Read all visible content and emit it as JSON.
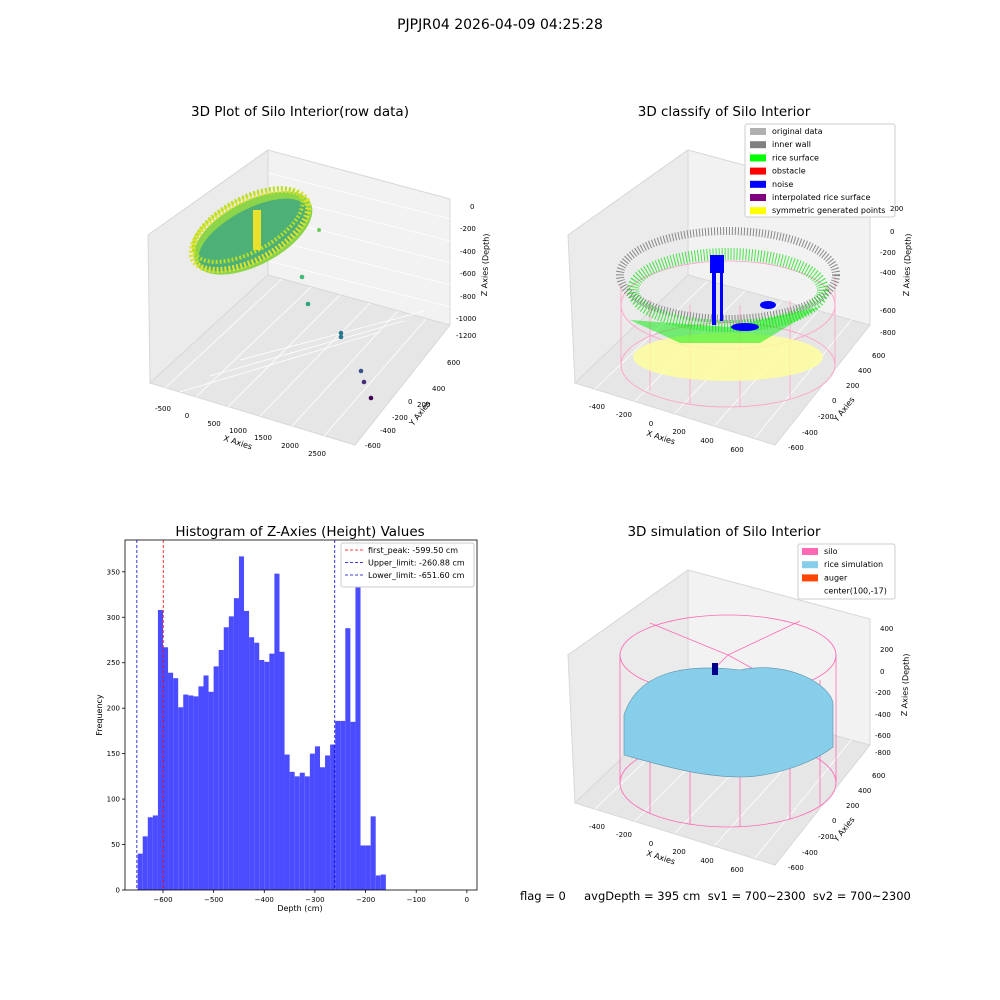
{
  "figure": {
    "title": "PJPJR04 2026-04-09 04:25:28",
    "footer": "flag = 0     avgDepth = 395 cm  sv1 = 700~2300  sv2 = 700~2300"
  },
  "panel_raw": {
    "title": "3D Plot of Silo Interior(row data)",
    "x_label": "X Axies",
    "y_label": "Y Axies",
    "z_label": "Z Axies (Depth)",
    "x_ticks": [
      "-500",
      "0",
      "500",
      "1000",
      "1500",
      "2000",
      "2500"
    ],
    "y_ticks": [
      "600",
      "400",
      "200",
      "0",
      "-200",
      "-400",
      "-600"
    ],
    "z_ticks": [
      "0",
      "-200",
      "-400",
      "-600",
      "-800",
      "-1000",
      "-1200"
    ],
    "colormap": [
      "#440154",
      "#31688e",
      "#35b779",
      "#fde725"
    ]
  },
  "panel_classify": {
    "title": "3D classify of Silo Interior",
    "x_label": "X Axies",
    "y_label": "Y Axies",
    "z_label": "Z Axies (Depth)",
    "x_ticks": [
      "-400",
      "-200",
      "0",
      "200",
      "400",
      "600"
    ],
    "y_ticks": [
      "600",
      "400",
      "200",
      "0",
      "-200",
      "-400",
      "-600"
    ],
    "z_ticks": [
      "200",
      "0",
      "-200",
      "-400",
      "-600",
      "-800"
    ],
    "legend": [
      {
        "label": "original data",
        "color": "#b0b0b0"
      },
      {
        "label": "inner wall",
        "color": "#808080"
      },
      {
        "label": "rice surface",
        "color": "#00ff00"
      },
      {
        "label": "obstacle",
        "color": "#ff0000"
      },
      {
        "label": "noise",
        "color": "#0000ff"
      },
      {
        "label": "interpolated rice surface",
        "color": "#800080"
      },
      {
        "label": "symmetric generated points",
        "color": "#ffff00"
      }
    ]
  },
  "panel_sim": {
    "title": "3D simulation of Silo Interior",
    "x_label": "X Axies",
    "y_label": "Y Axies",
    "z_label": "Z Axies (Depth)",
    "x_ticks": [
      "-400",
      "-200",
      "0",
      "200",
      "400",
      "600"
    ],
    "y_ticks": [
      "600",
      "400",
      "200",
      "0",
      "-200",
      "-400",
      "-600"
    ],
    "z_ticks": [
      "400",
      "200",
      "0",
      "-200",
      "-400",
      "-600",
      "-800"
    ],
    "legend": [
      {
        "label": "silo",
        "color": "#ff69b4"
      },
      {
        "label": "rice simulation",
        "color": "#87ceeb"
      },
      {
        "label": "auger",
        "color": "#ff4500"
      },
      {
        "label": "center(100,-17)",
        "color": ""
      }
    ]
  },
  "chart_data": [
    {
      "type": "bar",
      "title": "Histogram of Z-Axies (Height) Values",
      "xlabel": "Depth (cm)",
      "ylabel": "Frequency",
      "bar_color": "#4b4bff",
      "xlim": [
        -675,
        20
      ],
      "ylim": [
        0,
        385
      ],
      "x_ticks": [
        -600,
        -500,
        -400,
        -300,
        -200,
        -100,
        0
      ],
      "y_ticks": [
        0,
        50,
        100,
        150,
        200,
        250,
        300,
        350
      ],
      "bin_width": 10,
      "bin_starts": [
        -660,
        -650,
        -640,
        -630,
        -620,
        -610,
        -600,
        -590,
        -580,
        -570,
        -560,
        -550,
        -540,
        -530,
        -520,
        -510,
        -500,
        -490,
        -480,
        -470,
        -460,
        -450,
        -440,
        -430,
        -420,
        -410,
        -400,
        -390,
        -380,
        -370,
        -360,
        -350,
        -340,
        -330,
        -320,
        -310,
        -300,
        -290,
        -280,
        -270,
        -260,
        -250,
        -240,
        -230,
        -220,
        -210,
        -200,
        -190,
        -180,
        -170,
        -160,
        -150,
        -140,
        -130,
        -120,
        -110,
        -100,
        -90,
        -80,
        -70,
        -60,
        -50,
        -40,
        -30,
        -20,
        -10
      ],
      "values": [
        0,
        40,
        59,
        80,
        82,
        308,
        267,
        239,
        233,
        201,
        215,
        214,
        213,
        224,
        236,
        218,
        246,
        264,
        289,
        301,
        321,
        367,
        307,
        278,
        272,
        253,
        251,
        260,
        348,
        262,
        149,
        130,
        125,
        129,
        125,
        150,
        158,
        135,
        148,
        160,
        186,
        186,
        288,
        185,
        350,
        49,
        49,
        81,
        16,
        17,
        0,
        0,
        0,
        0,
        0,
        0,
        0,
        0,
        0,
        0,
        0,
        0,
        0,
        0,
        0,
        0
      ],
      "vlines": [
        {
          "label": "first_peak: -599.50 cm",
          "x": -599.5,
          "color": "#ff0000"
        },
        {
          "label": "Upper_limit: -260.88 cm",
          "x": -260.88,
          "color": "#0000cc"
        },
        {
          "label": "Lower_limit: -651.60 cm",
          "x": -651.6,
          "color": "#0000cc"
        }
      ]
    }
  ]
}
